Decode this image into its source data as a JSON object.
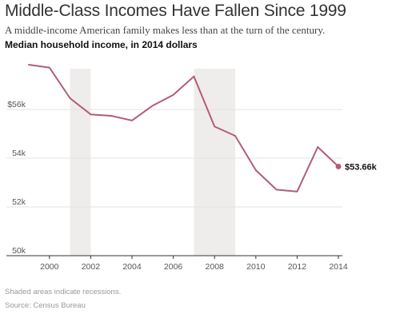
{
  "title": "Middle-Class Incomes Have Fallen Since 1999",
  "subtitle": "A middle-income American family makes less than at the turn of the century.",
  "chart_label": "Median household income, in 2014 dollars",
  "footnote": "Shaded areas indicate recessions.",
  "source": "Source: Census Bureau",
  "colors": {
    "line": "#b35c77",
    "recession": "#efedeb",
    "grid": "#e3e3e3",
    "axis": "#333333"
  },
  "chart_data": {
    "type": "line",
    "title": "Median household income, in 2014 dollars",
    "xlabel": "",
    "ylabel": "",
    "x": [
      1999,
      2000,
      2001,
      2002,
      2003,
      2004,
      2005,
      2006,
      2007,
      2008,
      2009,
      2010,
      2011,
      2012,
      2013,
      2014
    ],
    "series": [
      {
        "name": "",
        "values": [
          57.84,
          57.72,
          56.46,
          55.8,
          55.74,
          55.55,
          56.16,
          56.6,
          57.36,
          55.3,
          54.92,
          53.51,
          52.71,
          52.63,
          54.46,
          53.66
        ]
      }
    ],
    "xlim": [
      1999,
      2014
    ],
    "ylim": [
      50,
      58.2
    ],
    "x_ticks": [
      2000,
      2002,
      2004,
      2006,
      2008,
      2010,
      2012,
      2014
    ],
    "y_ticks": [
      50,
      52,
      54,
      56
    ],
    "y_tick_labels": [
      "50k",
      "52k",
      "54k",
      "$56k"
    ],
    "recessions": [
      [
        2001,
        2002
      ],
      [
        2007,
        2009
      ]
    ],
    "end_label": "$53.66k",
    "grid": true
  }
}
